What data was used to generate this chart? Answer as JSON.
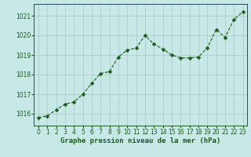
{
  "x": [
    0,
    1,
    2,
    3,
    4,
    5,
    6,
    7,
    8,
    9,
    10,
    11,
    12,
    13,
    14,
    15,
    16,
    17,
    18,
    19,
    20,
    21,
    22,
    23
  ],
  "y": [
    1015.8,
    1015.9,
    1016.2,
    1016.5,
    1016.6,
    1017.0,
    1017.55,
    1018.05,
    1018.15,
    1018.9,
    1019.25,
    1019.35,
    1020.0,
    1019.55,
    1019.3,
    1019.0,
    1018.85,
    1018.85,
    1018.9,
    1019.35,
    1020.3,
    1019.9,
    1020.8,
    1021.2
  ],
  "line_color": "#1a5c1a",
  "marker": "D",
  "marker_size": 2.5,
  "bg_color": "#c8e8e8",
  "grid_color": "#b0cccc",
  "xlabel": "Graphe pression niveau de la mer (hPa)",
  "xlabel_color": "#1a5c1a",
  "tick_color": "#1a5c1a",
  "ylim": [
    1015.4,
    1021.6
  ],
  "yticks": [
    1016,
    1017,
    1018,
    1019,
    1020,
    1021
  ],
  "xlim": [
    -0.5,
    23.5
  ],
  "xticks": [
    0,
    1,
    2,
    3,
    4,
    5,
    6,
    7,
    8,
    9,
    10,
    11,
    12,
    13,
    14,
    15,
    16,
    17,
    18,
    19,
    20,
    21,
    22,
    23
  ],
  "tick_fontsize": 5.5,
  "xlabel_fontsize": 6.5
}
